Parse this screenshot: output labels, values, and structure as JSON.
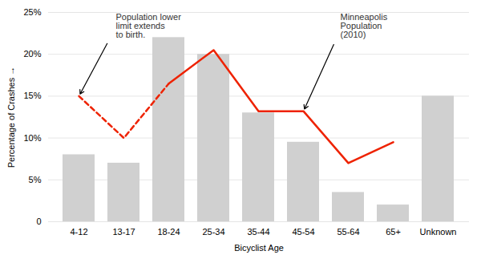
{
  "chart_data": {
    "type": "bar",
    "categories": [
      "4-12",
      "13-17",
      "18-24",
      "25-34",
      "35-44",
      "45-54",
      "55-64",
      "65+",
      "Unknown"
    ],
    "series": [
      {
        "type": "bar",
        "color": "#d0d0d0",
        "values": [
          8.0,
          7.0,
          22.0,
          20.0,
          13.0,
          9.5,
          3.5,
          2.0,
          15.0
        ]
      },
      {
        "type": "line",
        "color": "#ee2200",
        "line_style": "dashed",
        "values": [
          15.0,
          10.0,
          16.5,
          null,
          null,
          null,
          null,
          null,
          null
        ]
      },
      {
        "type": "line",
        "color": "#ee2200",
        "line_style": "solid",
        "values": [
          null,
          null,
          16.5,
          20.5,
          13.2,
          13.2,
          7.0,
          9.5,
          null
        ]
      }
    ],
    "xlabel": "Bicyclist Age",
    "ylabel": "Percentage of Crashes",
    "ylim": [
      0,
      25
    ],
    "yticks": [
      0,
      {
        "value": 5,
        "label": "5%"
      },
      {
        "value": 10,
        "label": "10%"
      },
      {
        "value": 15,
        "label": "15%"
      },
      {
        "value": 20,
        "label": "20%"
      },
      {
        "value": 25,
        "label": "25%"
      }
    ],
    "grid": true,
    "annotations": [
      {
        "text": "Minneapolis\nPopulation\n(2010)",
        "category": "45-54",
        "value": 13.2
      },
      {
        "text": "Population lower\nlimit extends\nto birth.",
        "category": "4-12",
        "value": 15.0
      }
    ]
  }
}
